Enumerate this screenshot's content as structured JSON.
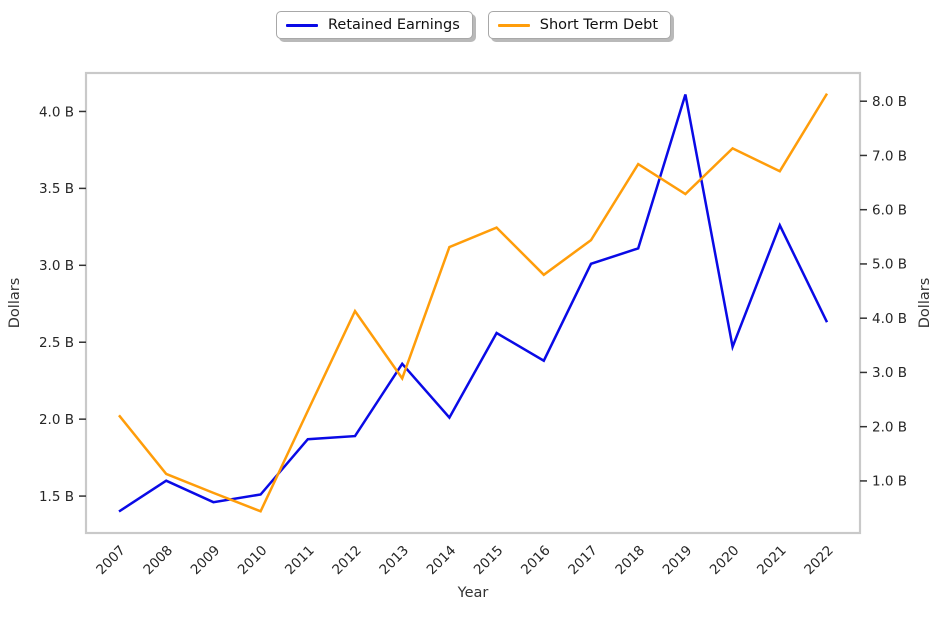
{
  "chart_data": {
    "type": "line",
    "title": "",
    "xlabel": "Year",
    "ylabel_left": "Dollars",
    "ylabel_right": "Dollars",
    "categories": [
      "2007",
      "2008",
      "2009",
      "2010",
      "2011",
      "2012",
      "2013",
      "2014",
      "2015",
      "2016",
      "2017",
      "2018",
      "2019",
      "2020",
      "2021",
      "2022"
    ],
    "series": [
      {
        "name": "Retained Earnings",
        "axis": "left",
        "color": "#0a0ae6",
        "values": [
          1.4,
          1.6,
          1.46,
          1.51,
          1.87,
          1.89,
          2.36,
          2.01,
          2.56,
          2.38,
          3.01,
          3.11,
          4.11,
          2.47,
          3.26,
          2.63
        ]
      },
      {
        "name": "Short Term Debt",
        "axis": "right",
        "color": "#ff9d0a",
        "values": [
          2.21,
          1.13,
          0.78,
          0.44,
          2.29,
          4.13,
          2.89,
          5.31,
          5.67,
          4.8,
          5.44,
          6.84,
          6.29,
          7.13,
          6.71,
          8.14
        ]
      }
    ],
    "left_axis": {
      "tick_values": [
        1.5,
        2.0,
        2.5,
        3.0,
        3.5,
        4.0
      ],
      "tick_labels": [
        "1.5 B",
        "2.0 B",
        "2.5 B",
        "3.0 B",
        "3.5 B",
        "4.0 B"
      ],
      "ylim": [
        1.26,
        4.25
      ]
    },
    "right_axis": {
      "tick_values": [
        1.0,
        2.0,
        3.0,
        4.0,
        5.0,
        6.0,
        7.0,
        8.0
      ],
      "tick_labels": [
        "1.0 B",
        "2.0 B",
        "3.0 B",
        "4.0 B",
        "5.0 B",
        "6.0 B",
        "7.0 B",
        "8.0 B"
      ],
      "ylim": [
        0.04,
        8.52
      ]
    },
    "legend_position": "top-center",
    "grid": false
  },
  "colors": {
    "spine": "#c9c9c9",
    "tick_mark": "#333333",
    "tick_text": "#262626",
    "axis_label_text": "#333333"
  }
}
